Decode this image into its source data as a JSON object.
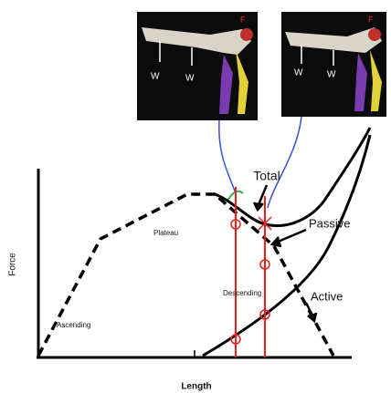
{
  "axes": {
    "y_label": "Force",
    "x_label": "Length"
  },
  "curves": {
    "total": "Total",
    "passive": "Passive",
    "active": "Active"
  },
  "regions": {
    "ascending": "Ascending",
    "plateau": "Plateau",
    "descending": "Descending"
  },
  "panels": [
    {
      "labels": [
        "W",
        "W",
        "F"
      ]
    },
    {
      "labels": [
        "W",
        "W",
        "F"
      ]
    }
  ]
}
